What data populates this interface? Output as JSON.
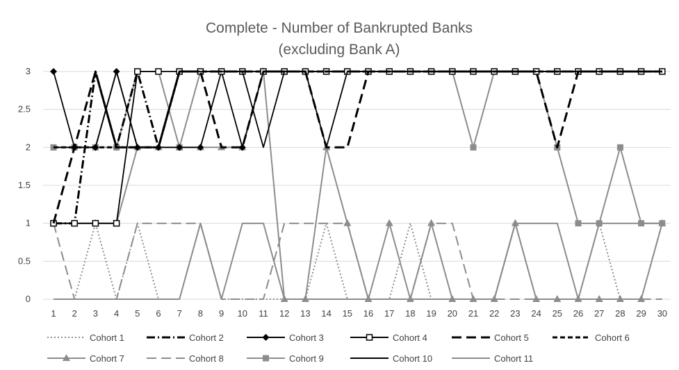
{
  "chart_data": {
    "type": "line",
    "title": "Complete - Number of Bankrupted Banks",
    "subtitle": "(excluding Bank A)",
    "xlabel": "",
    "ylabel": "",
    "x": [
      1,
      2,
      3,
      4,
      5,
      6,
      7,
      8,
      9,
      10,
      11,
      12,
      13,
      14,
      15,
      16,
      17,
      18,
      19,
      20,
      21,
      22,
      23,
      24,
      25,
      26,
      27,
      28,
      29,
      30
    ],
    "x_tick_labels": [
      "1",
      "2",
      "3",
      "4",
      "5",
      "6",
      "7",
      "8",
      "9",
      "10",
      "11",
      "12",
      "13",
      "14",
      "15",
      "16",
      "17",
      "18",
      "19",
      "20",
      "21",
      "22",
      "23",
      "24",
      "25",
      "26",
      "27",
      "28",
      "29",
      "30"
    ],
    "y_tick_labels": [
      "0",
      "0.5",
      "1",
      "1.5",
      "2",
      "2.5",
      "3"
    ],
    "ylim": [
      0,
      3
    ],
    "grid": "horizontal",
    "legend_position": "bottom",
    "series": [
      {
        "name": "Cohort 1",
        "color": "#8c8c8c",
        "dash": "dotted",
        "marker": "none",
        "values": [
          0,
          0,
          1,
          0,
          1,
          0,
          0,
          1,
          0,
          0,
          0,
          0,
          0,
          1,
          0,
          0,
          0,
          1,
          0,
          0,
          0,
          0,
          1,
          0,
          0,
          0,
          1,
          0,
          0,
          1
        ]
      },
      {
        "name": "Cohort 2",
        "color": "#000000",
        "dash": "dashdot",
        "marker": "none",
        "values": [
          1,
          1,
          3,
          2,
          3,
          2,
          3,
          3,
          3,
          3,
          3,
          3,
          3,
          3,
          3,
          3,
          3,
          3,
          3,
          3,
          3,
          3,
          3,
          3,
          3,
          3,
          3,
          3,
          3,
          3
        ]
      },
      {
        "name": "Cohort 3",
        "color": "#000000",
        "dash": "solid",
        "marker": "diamond",
        "values": [
          3,
          2,
          2,
          3,
          2,
          2,
          2,
          2,
          3,
          2,
          3,
          3,
          3,
          3,
          3,
          3,
          3,
          3,
          3,
          3,
          3,
          3,
          3,
          3,
          3,
          3,
          3,
          3,
          3,
          3
        ]
      },
      {
        "name": "Cohort 4",
        "color": "#000000",
        "dash": "solid",
        "marker": "square-open",
        "values": [
          1,
          1,
          1,
          1,
          3,
          3,
          3,
          3,
          3,
          3,
          3,
          3,
          3,
          3,
          3,
          3,
          3,
          3,
          3,
          3,
          3,
          3,
          3,
          3,
          3,
          3,
          3,
          3,
          3,
          3
        ]
      },
      {
        "name": "Cohort 5",
        "color": "#000000",
        "dash": "longdash",
        "marker": "none",
        "values": [
          1,
          2,
          3,
          2,
          2,
          2,
          3,
          3,
          2,
          2,
          3,
          3,
          3,
          2,
          2,
          3,
          3,
          3,
          3,
          3,
          3,
          3,
          3,
          3,
          2,
          3,
          3,
          3,
          3,
          3
        ]
      },
      {
        "name": "Cohort 6",
        "color": "#000000",
        "dash": "shortdash",
        "marker": "none",
        "values": [
          2,
          2,
          2,
          2,
          2,
          2,
          3,
          3,
          3,
          3,
          3,
          3,
          3,
          3,
          3,
          3,
          3,
          3,
          3,
          3,
          3,
          3,
          3,
          3,
          3,
          3,
          3,
          3,
          3,
          3
        ]
      },
      {
        "name": "Cohort 7",
        "color": "#8c8c8c",
        "dash": "solid",
        "marker": "triangle",
        "values": [
          1,
          1,
          1,
          1,
          2,
          2,
          2,
          2,
          2,
          2,
          3,
          0,
          0,
          2,
          1,
          0,
          1,
          0,
          1,
          0,
          0,
          0,
          1,
          0,
          0,
          0,
          0,
          0,
          0,
          1
        ]
      },
      {
        "name": "Cohort 8",
        "color": "#8c8c8c",
        "dash": "longdash",
        "marker": "none",
        "values": [
          1,
          0,
          0,
          0,
          1,
          1,
          1,
          1,
          0,
          0,
          0,
          1,
          1,
          1,
          1,
          0,
          0,
          0,
          1,
          1,
          0,
          0,
          0,
          0,
          0,
          0,
          0,
          0,
          0,
          0
        ]
      },
      {
        "name": "Cohort 9",
        "color": "#8c8c8c",
        "dash": "solid",
        "marker": "square",
        "values": [
          2,
          2,
          2,
          2,
          3,
          3,
          2,
          3,
          3,
          3,
          3,
          3,
          3,
          3,
          3,
          3,
          3,
          3,
          3,
          3,
          2,
          3,
          3,
          3,
          2,
          1,
          1,
          2,
          1,
          1
        ]
      },
      {
        "name": "Cohort 10",
        "color": "#000000",
        "dash": "solid",
        "marker": "none",
        "values": [
          2,
          2,
          2,
          3,
          2,
          2,
          3,
          3,
          3,
          3,
          2,
          3,
          3,
          2,
          3,
          3,
          3,
          3,
          3,
          3,
          3,
          3,
          3,
          3,
          3,
          3,
          3,
          3,
          3,
          3
        ]
      },
      {
        "name": "Cohort 11",
        "color": "#8c8c8c",
        "dash": "solid",
        "marker": "none",
        "values": [
          0,
          0,
          0,
          0,
          0,
          0,
          0,
          1,
          0,
          1,
          1,
          0,
          0,
          0,
          0,
          0,
          0,
          0,
          0,
          0,
          0,
          0,
          1,
          1,
          1,
          0,
          1,
          1,
          1,
          1
        ]
      }
    ]
  }
}
